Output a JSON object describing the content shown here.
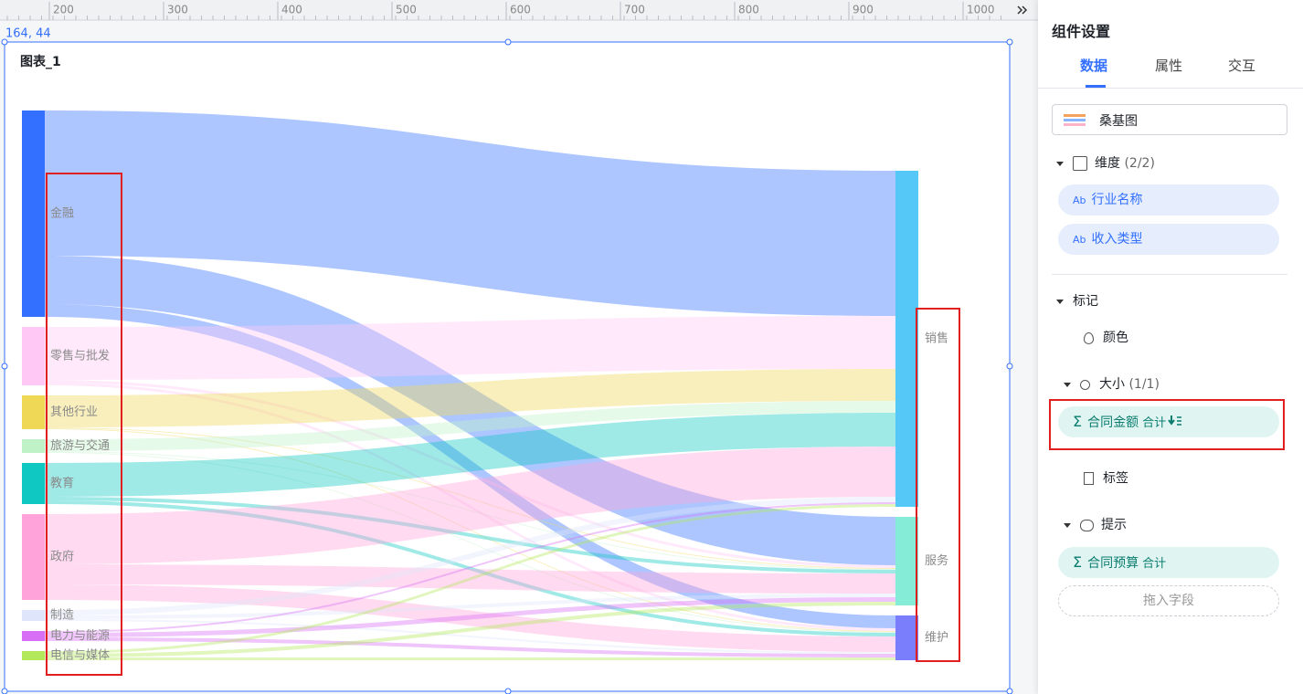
{
  "ruler": {
    "ticks": [
      200,
      300,
      400,
      500,
      600,
      700,
      800,
      900,
      1000
    ]
  },
  "coords": "164, 44",
  "chart_title": "图表_1",
  "chart_data": {
    "type": "sankey",
    "nodes": [
      {
        "name": "金融",
        "color": "#3370ff",
        "side": "left"
      },
      {
        "name": "零售与批发",
        "color": "#ffc8f5",
        "side": "left"
      },
      {
        "name": "其他行业",
        "color": "#f0d857",
        "side": "left"
      },
      {
        "name": "旅游与交通",
        "color": "#c0f2c8",
        "side": "left"
      },
      {
        "name": "教育",
        "color": "#10c8c2",
        "side": "left"
      },
      {
        "name": "政府",
        "color": "#ffa3da",
        "side": "left"
      },
      {
        "name": "制造",
        "color": "#dfe6fb",
        "side": "left"
      },
      {
        "name": "电力与能源",
        "color": "#d86ef5",
        "side": "left"
      },
      {
        "name": "电信与媒体",
        "color": "#b2e85a",
        "side": "left"
      },
      {
        "name": "销售",
        "color": "#56c8f8",
        "side": "right"
      },
      {
        "name": "服务",
        "color": "#85ecd8",
        "side": "right"
      },
      {
        "name": "维护",
        "color": "#7a7dfc",
        "side": "right"
      }
    ],
    "links": [
      {
        "source": "金融",
        "target": "销售",
        "value": 159
      },
      {
        "source": "金融",
        "target": "服务",
        "value": 53
      },
      {
        "source": "金融",
        "target": "维护",
        "value": 14
      },
      {
        "source": "零售与批发",
        "target": "销售",
        "value": 58
      },
      {
        "source": "零售与批发",
        "target": "服务",
        "value": 3
      },
      {
        "source": "零售与批发",
        "target": "维护",
        "value": 3
      },
      {
        "source": "其他行业",
        "target": "销售",
        "value": 35
      },
      {
        "source": "其他行业",
        "target": "服务",
        "value": 1
      },
      {
        "source": "其他行业",
        "target": "维护",
        "value": 1
      },
      {
        "source": "旅游与交通",
        "target": "销售",
        "value": 13
      },
      {
        "source": "旅游与交通",
        "target": "服务",
        "value": 1
      },
      {
        "source": "旅游与交通",
        "target": "维护",
        "value": 1
      },
      {
        "source": "教育",
        "target": "销售",
        "value": 37
      },
      {
        "source": "教育",
        "target": "服务",
        "value": 4
      },
      {
        "source": "教育",
        "target": "维护",
        "value": 4
      },
      {
        "source": "政府",
        "target": "销售",
        "value": 55
      },
      {
        "source": "政府",
        "target": "服务",
        "value": 22
      },
      {
        "source": "政府",
        "target": "维护",
        "value": 17
      },
      {
        "source": "制造",
        "target": "销售",
        "value": 6
      },
      {
        "source": "制造",
        "target": "服务",
        "value": 4
      },
      {
        "source": "制造",
        "target": "维护",
        "value": 2
      },
      {
        "source": "电力与能源",
        "target": "销售",
        "value": 2
      },
      {
        "source": "电力与能源",
        "target": "服务",
        "value": 5
      },
      {
        "source": "电力与能源",
        "target": "维护",
        "value": 4
      },
      {
        "source": "电信与媒体",
        "target": "销售",
        "value": 3
      },
      {
        "source": "电信与媒体",
        "target": "服务",
        "value": 4
      },
      {
        "source": "电信与媒体",
        "target": "维护",
        "value": 3
      }
    ]
  },
  "panel": {
    "title": "组件设置",
    "tabs": [
      "数据",
      "属性",
      "交互"
    ],
    "chart_type": "桑基图",
    "dimension": {
      "label": "维度",
      "count": "(2/2)",
      "fields": [
        "行业名称",
        "收入类型"
      ],
      "icon": "Ab"
    },
    "mark": {
      "label": "标记",
      "color": "颜色",
      "size": "大小",
      "size_count": "(1/1)",
      "size_field": {
        "icon": "Σ",
        "name": "合同金额",
        "agg": "合计"
      },
      "label_item": "标签"
    },
    "tooltip": {
      "label": "提示",
      "field": {
        "icon": "Σ",
        "name": "合同预算",
        "agg": "合计"
      },
      "drop": "拖入字段"
    }
  }
}
